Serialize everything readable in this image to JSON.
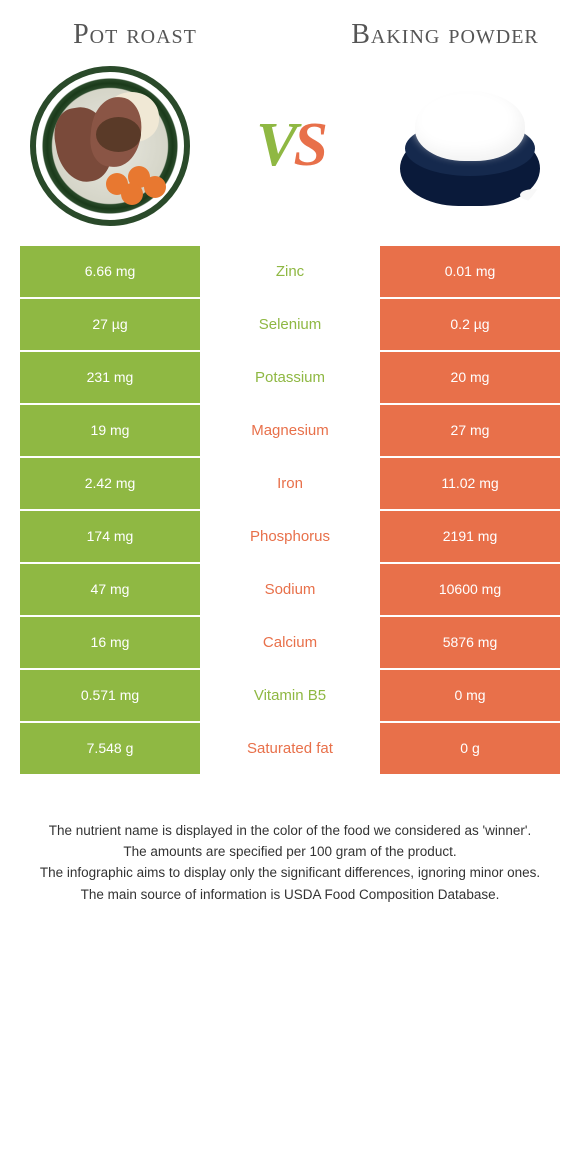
{
  "colors": {
    "green": "#8fb843",
    "orange": "#e8704a",
    "white": "#ffffff",
    "text_gray": "#555555"
  },
  "header": {
    "left_title": "Pot roast",
    "right_title": "Baking powder",
    "vs_v": "V",
    "vs_s": "S"
  },
  "table": {
    "rows": [
      {
        "left": "6.66 mg",
        "mid": "Zinc",
        "right": "0.01 mg",
        "winner": "left"
      },
      {
        "left": "27 µg",
        "mid": "Selenium",
        "right": "0.2 µg",
        "winner": "left"
      },
      {
        "left": "231 mg",
        "mid": "Potassium",
        "right": "20 mg",
        "winner": "left"
      },
      {
        "left": "19 mg",
        "mid": "Magnesium",
        "right": "27 mg",
        "winner": "right"
      },
      {
        "left": "2.42 mg",
        "mid": "Iron",
        "right": "11.02 mg",
        "winner": "right"
      },
      {
        "left": "174 mg",
        "mid": "Phosphorus",
        "right": "2191 mg",
        "winner": "right"
      },
      {
        "left": "47 mg",
        "mid": "Sodium",
        "right": "10600 mg",
        "winner": "right"
      },
      {
        "left": "16 mg",
        "mid": "Calcium",
        "right": "5876 mg",
        "winner": "right"
      },
      {
        "left": "0.571 mg",
        "mid": "Vitamin B5",
        "right": "0 mg",
        "winner": "left"
      },
      {
        "left": "7.548 g",
        "mid": "Saturated fat",
        "right": "0 g",
        "winner": "right"
      }
    ]
  },
  "footnotes": [
    "The nutrient name is displayed in the color of the food we considered as 'winner'.",
    "The amounts are specified per 100 gram of the product.",
    "The infographic aims to display only the significant differences, ignoring minor ones.",
    "The main source of information is USDA Food Composition Database."
  ]
}
